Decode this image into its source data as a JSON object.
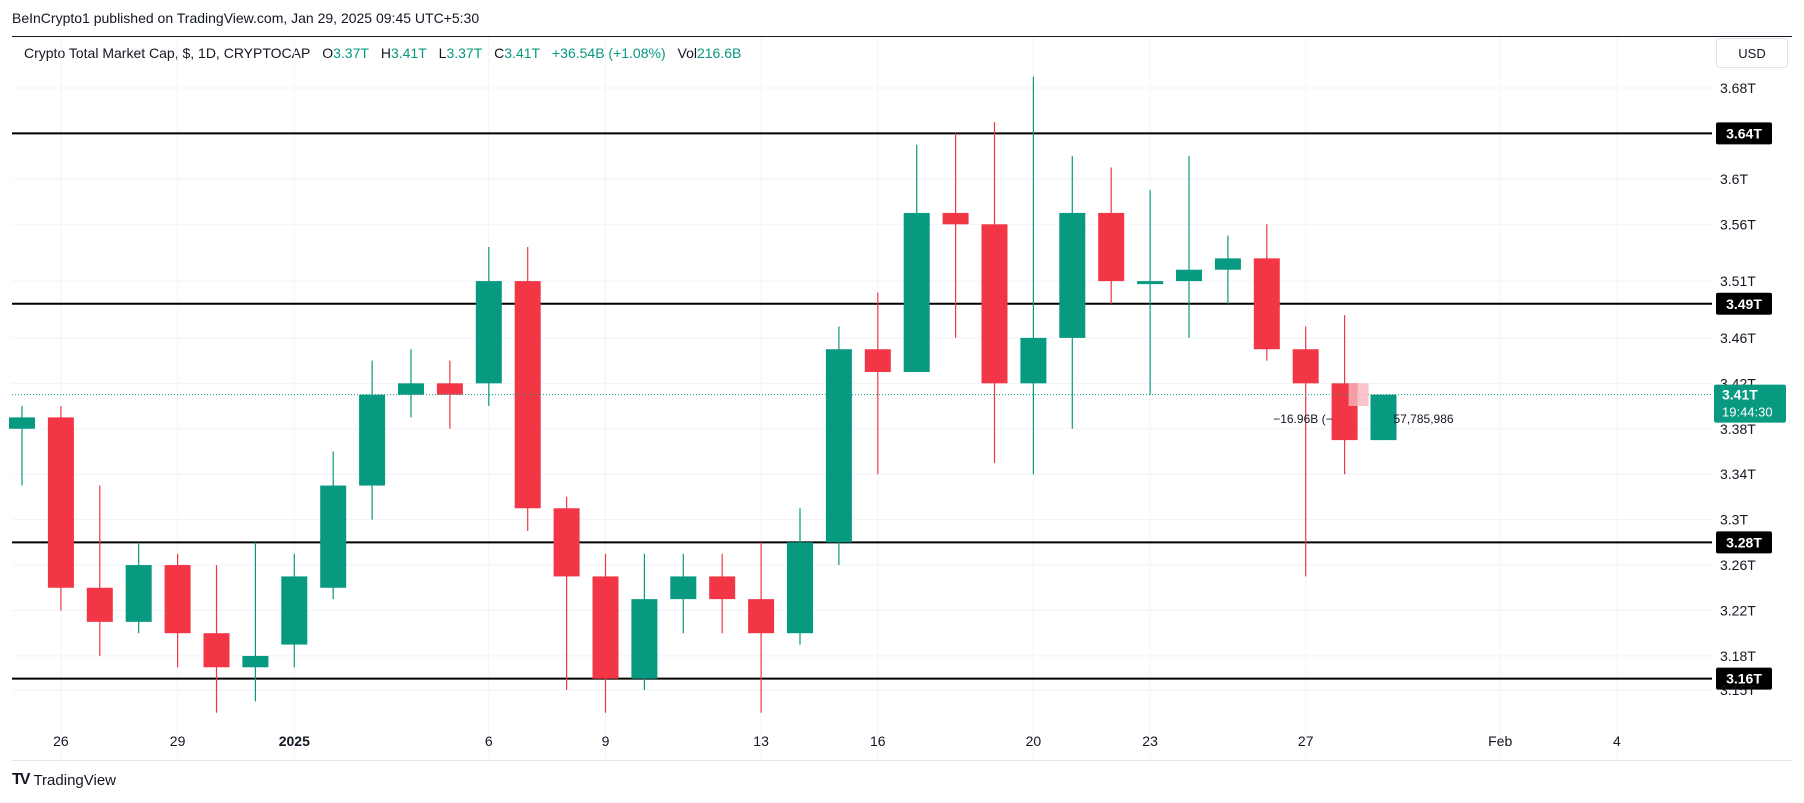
{
  "header": {
    "publisher": "BeInCrypto1 published on TradingView.com, Jan 29, 2025 09:45 UTC+5:30"
  },
  "legend": {
    "symbol": "Crypto Total Market Cap, $, 1D, CRYPTOCAP",
    "open_label": "O",
    "open": "3.37T",
    "high_label": "H",
    "high": "3.41T",
    "low_label": "L",
    "low": "3.37T",
    "close_label": "C",
    "close": "3.41T",
    "change": "+36.54B (+1.08%)",
    "vol_label": "Vol",
    "vol": "216.6B"
  },
  "currency": "USD",
  "price_badge": {
    "value": "3.41T",
    "countdown": "19:44:30"
  },
  "measure_annotation": {
    "left": "−16.96B (−",
    "right": "57,785,986"
  },
  "footer": {
    "brand": "TradingView"
  },
  "colors": {
    "up": "#089981",
    "down": "#f23645",
    "grid": "#f0f3fa",
    "level": "#000000"
  },
  "chart_data": {
    "type": "candlestick",
    "grid": true,
    "y_axis": {
      "ticks": [
        3.68,
        3.64,
        3.6,
        3.56,
        3.51,
        3.46,
        3.42,
        3.38,
        3.34,
        3.3,
        3.26,
        3.22,
        3.18,
        3.16,
        3.15
      ],
      "tick_labels": [
        "3.68T",
        "3.6T",
        "3.56T",
        "3.51T",
        "3.46T",
        "3.42T",
        "3.38T",
        "3.34T",
        "3.3T",
        "3.26T",
        "3.22T",
        "3.18T",
        "3.15T"
      ],
      "tick_values": [
        3.68,
        3.6,
        3.56,
        3.51,
        3.46,
        3.42,
        3.38,
        3.34,
        3.3,
        3.26,
        3.22,
        3.18,
        3.15
      ]
    },
    "x_axis": {
      "labels": [
        "26",
        "29",
        "2025",
        "6",
        "9",
        "13",
        "16",
        "20",
        "23",
        "27",
        "Feb",
        "4"
      ],
      "label_index": [
        1,
        4,
        7,
        12,
        15,
        19,
        22,
        26,
        29,
        33,
        38,
        41
      ]
    },
    "levels": [
      {
        "value": 3.64,
        "label": "3.64T"
      },
      {
        "value": 3.49,
        "label": "3.49T"
      },
      {
        "value": 3.28,
        "label": "3.28T"
      },
      {
        "value": 3.16,
        "label": "3.16T"
      }
    ],
    "current_price": 3.41,
    "candles": [
      {
        "date": "Dec 25",
        "o": 3.38,
        "h": 3.4,
        "l": 3.33,
        "c": 3.39
      },
      {
        "date": "Dec 26",
        "o": 3.39,
        "h": 3.4,
        "l": 3.22,
        "c": 3.24
      },
      {
        "date": "Dec 27",
        "o": 3.24,
        "h": 3.33,
        "l": 3.18,
        "c": 3.21
      },
      {
        "date": "Dec 28",
        "o": 3.21,
        "h": 3.28,
        "l": 3.2,
        "c": 3.26
      },
      {
        "date": "Dec 29",
        "o": 3.26,
        "h": 3.27,
        "l": 3.17,
        "c": 3.2
      },
      {
        "date": "Dec 30",
        "o": 3.2,
        "h": 3.26,
        "l": 3.13,
        "c": 3.17
      },
      {
        "date": "Dec 31",
        "o": 3.17,
        "h": 3.28,
        "l": 3.14,
        "c": 3.18
      },
      {
        "date": "Jan 1",
        "o": 3.19,
        "h": 3.27,
        "l": 3.17,
        "c": 3.25
      },
      {
        "date": "Jan 2",
        "o": 3.24,
        "h": 3.36,
        "l": 3.23,
        "c": 3.33
      },
      {
        "date": "Jan 3",
        "o": 3.33,
        "h": 3.44,
        "l": 3.3,
        "c": 3.41
      },
      {
        "date": "Jan 4",
        "o": 3.41,
        "h": 3.45,
        "l": 3.39,
        "c": 3.42
      },
      {
        "date": "Jan 5",
        "o": 3.42,
        "h": 3.44,
        "l": 3.38,
        "c": 3.41
      },
      {
        "date": "Jan 6",
        "o": 3.42,
        "h": 3.54,
        "l": 3.4,
        "c": 3.51
      },
      {
        "date": "Jan 7",
        "o": 3.51,
        "h": 3.54,
        "l": 3.29,
        "c": 3.31
      },
      {
        "date": "Jan 8",
        "o": 3.31,
        "h": 3.32,
        "l": 3.15,
        "c": 3.25
      },
      {
        "date": "Jan 9",
        "o": 3.25,
        "h": 3.27,
        "l": 3.13,
        "c": 3.16
      },
      {
        "date": "Jan 10",
        "o": 3.16,
        "h": 3.27,
        "l": 3.15,
        "c": 3.23
      },
      {
        "date": "Jan 11",
        "o": 3.23,
        "h": 3.27,
        "l": 3.2,
        "c": 3.25
      },
      {
        "date": "Jan 12",
        "o": 3.25,
        "h": 3.27,
        "l": 3.2,
        "c": 3.23
      },
      {
        "date": "Jan 13",
        "o": 3.23,
        "h": 3.28,
        "l": 3.13,
        "c": 3.2
      },
      {
        "date": "Jan 14",
        "o": 3.2,
        "h": 3.31,
        "l": 3.19,
        "c": 3.28
      },
      {
        "date": "Jan 15",
        "o": 3.28,
        "h": 3.47,
        "l": 3.26,
        "c": 3.45
      },
      {
        "date": "Jan 16",
        "o": 3.45,
        "h": 3.5,
        "l": 3.34,
        "c": 3.43
      },
      {
        "date": "Jan 17",
        "o": 3.43,
        "h": 3.63,
        "l": 3.43,
        "c": 3.57
      },
      {
        "date": "Jan 18",
        "o": 3.57,
        "h": 3.64,
        "l": 3.46,
        "c": 3.56
      },
      {
        "date": "Jan 19",
        "o": 3.56,
        "h": 3.65,
        "l": 3.35,
        "c": 3.42
      },
      {
        "date": "Jan 20",
        "o": 3.42,
        "h": 3.69,
        "l": 3.34,
        "c": 3.46
      },
      {
        "date": "Jan 21",
        "o": 3.46,
        "h": 3.62,
        "l": 3.38,
        "c": 3.57
      },
      {
        "date": "Jan 22",
        "o": 3.57,
        "h": 3.61,
        "l": 3.49,
        "c": 3.51
      },
      {
        "date": "Jan 23",
        "o": 3.51,
        "h": 3.59,
        "l": 3.41,
        "c": 3.51
      },
      {
        "date": "Jan 24",
        "o": 3.51,
        "h": 3.62,
        "l": 3.46,
        "c": 3.52
      },
      {
        "date": "Jan 25",
        "o": 3.52,
        "h": 3.55,
        "l": 3.49,
        "c": 3.53
      },
      {
        "date": "Jan 26",
        "o": 3.53,
        "h": 3.56,
        "l": 3.44,
        "c": 3.45
      },
      {
        "date": "Jan 27",
        "o": 3.45,
        "h": 3.47,
        "l": 3.25,
        "c": 3.42
      },
      {
        "date": "Jan 28",
        "o": 3.42,
        "h": 3.48,
        "l": 3.34,
        "c": 3.37
      },
      {
        "date": "Jan 29",
        "o": 3.37,
        "h": 3.41,
        "l": 3.37,
        "c": 3.41
      }
    ]
  }
}
